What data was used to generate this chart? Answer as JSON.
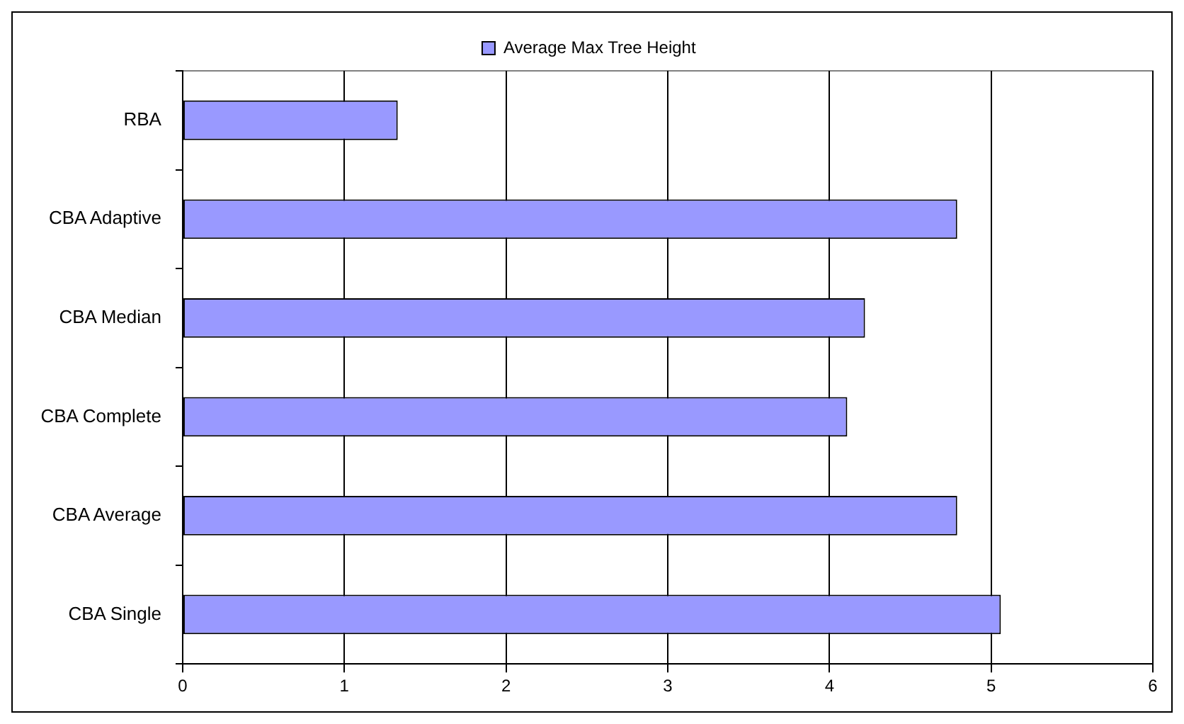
{
  "chart_data": {
    "type": "bar",
    "orientation": "horizontal",
    "categories": [
      "RBA",
      "CBA Adaptive",
      "CBA Median",
      "CBA Complete",
      "CBA Average",
      "CBA Single"
    ],
    "series": [
      {
        "name": "Average Max Tree Height",
        "color": "#9999ff",
        "values": [
          1.33,
          4.79,
          4.22,
          4.11,
          4.79,
          5.06
        ]
      }
    ],
    "xlim": [
      0,
      6
    ],
    "xticks": [
      0,
      1,
      2,
      3,
      4,
      5,
      6
    ],
    "grid": "x",
    "legend": "top"
  }
}
